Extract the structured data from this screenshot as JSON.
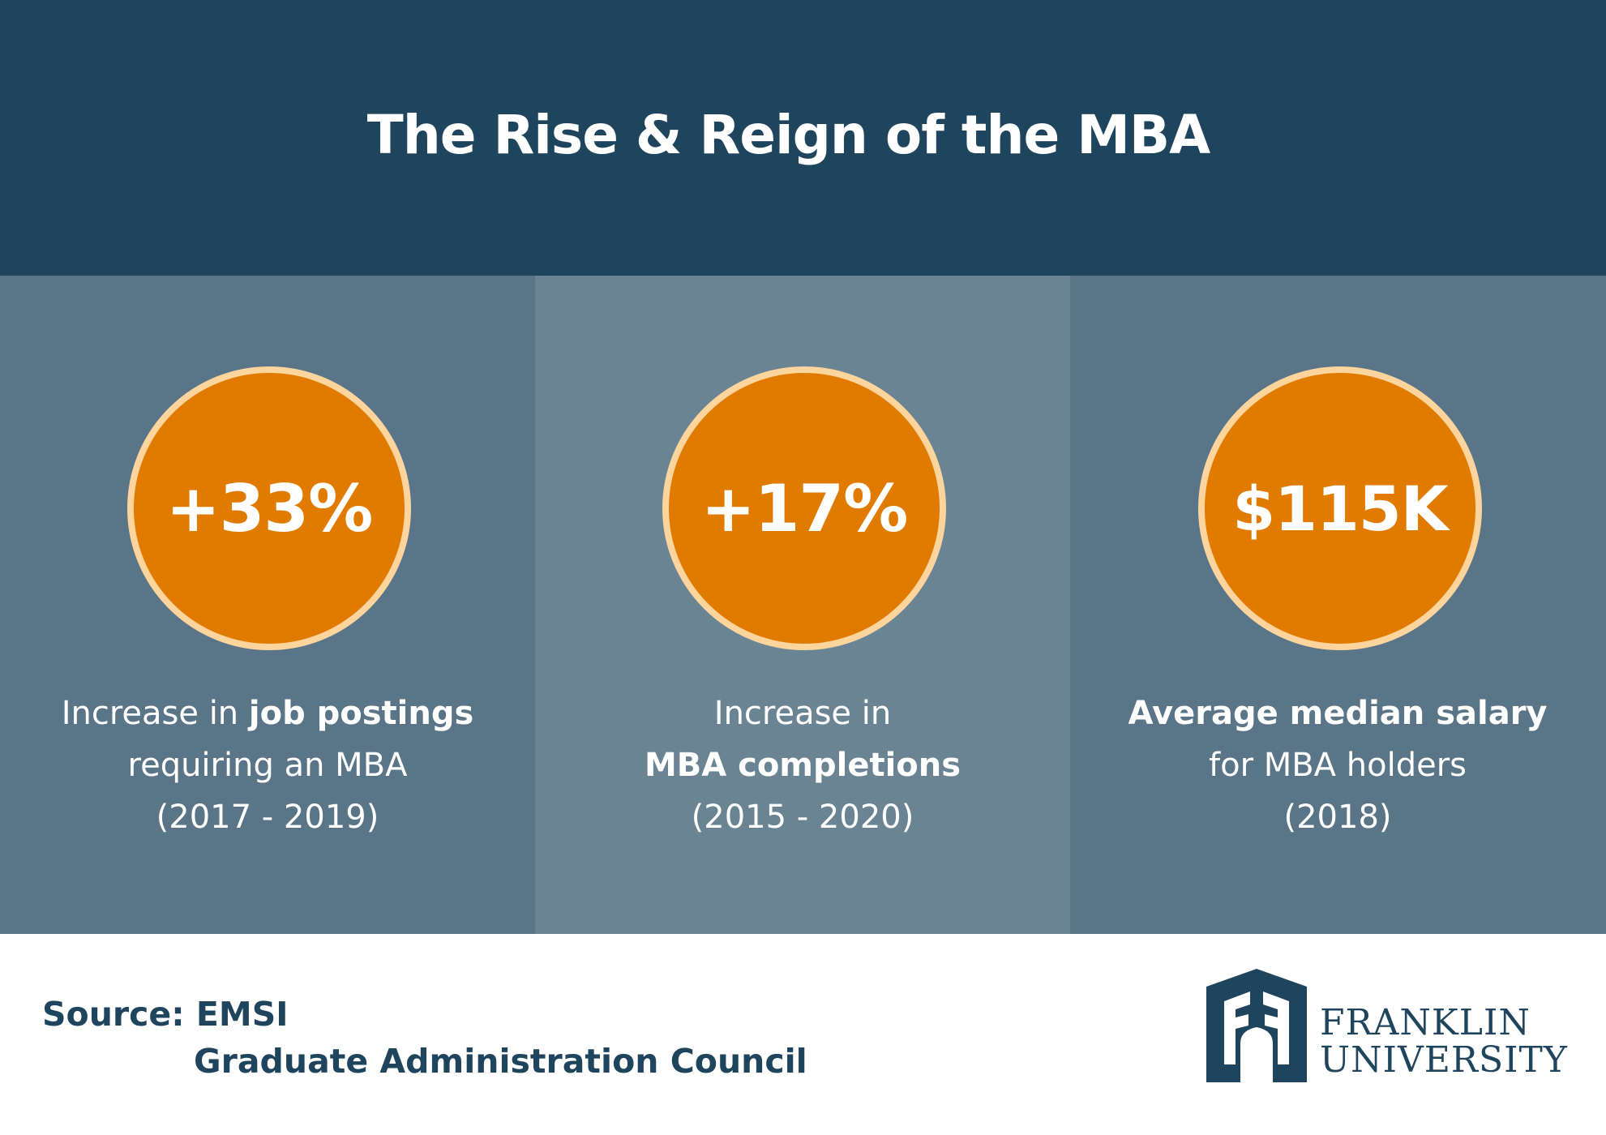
{
  "title": "The Rise & Reign of the MBA",
  "colors": {
    "header_bg": "#1f445d",
    "panel_dark": "#5a7587",
    "panel_light": "#6a8494",
    "circle_fill": "#e07b00",
    "circle_ring": "#fcd49c",
    "brand_navy": "#1f445d"
  },
  "stats": [
    {
      "value": "+33%",
      "caption": {
        "line1_regular": "Increase in ",
        "line1_bold": "job postings",
        "line2": "requiring an MBA",
        "line3": "(2017 - 2019)"
      }
    },
    {
      "value": "+17%",
      "caption": {
        "line1": "Increase in",
        "line2_bold": "MBA completions",
        "line3": "(2015 - 2020)"
      }
    },
    {
      "value": "$115K",
      "caption": {
        "line1_bold": "Average median salary",
        "line2": "for MBA holders",
        "line3": "(2018)"
      }
    }
  ],
  "source": {
    "label": "Source: ",
    "line1": "EMSI",
    "line2": "Graduate Administration Council"
  },
  "logo": {
    "icon": "franklin-arch-logo",
    "line1": "FRANKLIN",
    "line2": "UNIVERSITY"
  }
}
